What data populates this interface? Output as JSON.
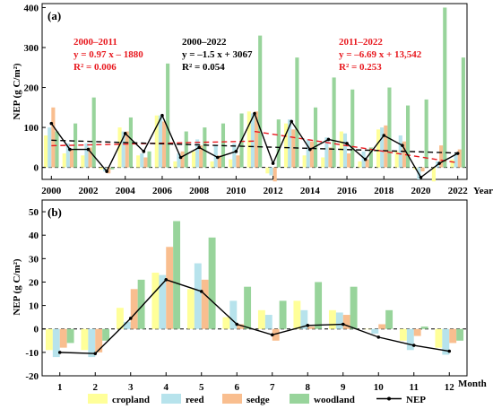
{
  "colors": {
    "cropland": "#ffff99",
    "reed": "#b7e3ec",
    "sedge": "#f9be8f",
    "woodland": "#98d49b",
    "nep": "#000000",
    "trend_red": "#e8191f",
    "trend_black": "#000000"
  },
  "legend": [
    {
      "key": "cropland",
      "label": "cropland",
      "kind": "bar"
    },
    {
      "key": "reed",
      "label": "reed",
      "kind": "bar"
    },
    {
      "key": "sedge",
      "label": "sedge",
      "kind": "bar"
    },
    {
      "key": "woodland",
      "label": "woodland",
      "kind": "bar"
    },
    {
      "key": "nep",
      "label": "NEP",
      "kind": "line"
    }
  ],
  "chart_data": [
    {
      "panel": "(a)",
      "type": "bar",
      "xlabel": "Year",
      "ylabel": "NEP (g C/m²)",
      "ylim": [
        -30,
        410
      ],
      "yticks": [
        0,
        100,
        200,
        300,
        400
      ],
      "xlim": [
        1999.5,
        2022.5
      ],
      "xticks": [
        2000,
        2002,
        2004,
        2006,
        2008,
        2010,
        2012,
        2014,
        2016,
        2018,
        2020,
        2022
      ],
      "xtick_labels": [
        "2000",
        "2002",
        "2004",
        "2006",
        "2008",
        "2010",
        "2012",
        "2014",
        "2016",
        "2018",
        "2020",
        "2022"
      ],
      "x": [
        2000,
        2001,
        2002,
        2003,
        2004,
        2005,
        2006,
        2007,
        2008,
        2009,
        2010,
        2011,
        2012,
        2013,
        2014,
        2015,
        2016,
        2017,
        2018,
        2019,
        2020,
        2021,
        2022
      ],
      "series": [
        {
          "key": "cropland",
          "name": "cropland",
          "values": [
            80,
            35,
            30,
            -5,
            100,
            30,
            130,
            15,
            40,
            15,
            20,
            140,
            -15,
            110,
            30,
            25,
            90,
            15,
            95,
            40,
            -5,
            -35,
            20
          ]
        },
        {
          "key": "reed",
          "name": "reed",
          "values": [
            100,
            60,
            60,
            -10,
            90,
            35,
            130,
            35,
            70,
            55,
            60,
            135,
            -20,
            120,
            70,
            75,
            85,
            40,
            100,
            80,
            -30,
            15,
            35
          ]
        },
        {
          "key": "sedge",
          "name": "sedge",
          "values": [
            150,
            45,
            50,
            -15,
            90,
            25,
            115,
            40,
            55,
            30,
            30,
            140,
            -35,
            95,
            65,
            50,
            35,
            20,
            105,
            65,
            -10,
            55,
            45
          ]
        },
        {
          "key": "woodland",
          "name": "woodland",
          "values": [
            90,
            110,
            175,
            -5,
            125,
            40,
            260,
            90,
            100,
            110,
            135,
            330,
            120,
            275,
            150,
            225,
            195,
            50,
            200,
            155,
            170,
            400,
            275
          ]
        },
        {
          "key": "nep",
          "name": "NEP",
          "type": "line",
          "values": [
            110,
            45,
            45,
            -10,
            85,
            40,
            130,
            25,
            50,
            25,
            40,
            135,
            10,
            115,
            45,
            70,
            60,
            20,
            80,
            55,
            -25,
            10,
            35
          ]
        }
      ],
      "trendlines": [
        {
          "label": "2000–2011",
          "range": [
            2000,
            2011
          ],
          "equation": "y = 0.97 x – 1880",
          "r2": "R² = 0.006",
          "color": "red",
          "style": "dashed"
        },
        {
          "label": "2000–2022",
          "range": [
            2000,
            2022
          ],
          "equation": "y = –1.5 x + 3067",
          "r2": "R² = 0.054",
          "color": "black",
          "style": "dashed"
        },
        {
          "label": "2011–2022",
          "range": [
            2011,
            2022
          ],
          "equation": "y = –6.69 x + 13,542",
          "r2": "R² = 0.253",
          "color": "red",
          "style": "dashed"
        }
      ]
    },
    {
      "panel": "(b)",
      "type": "bar",
      "xlabel": "Month",
      "ylabel": "NEP (g C/m²)",
      "ylim": [
        -20,
        55
      ],
      "yticks": [
        -20,
        -10,
        0,
        10,
        20,
        30,
        40,
        50
      ],
      "xlim": [
        0.5,
        12.5
      ],
      "xticks": [
        1,
        2,
        3,
        4,
        5,
        6,
        7,
        8,
        9,
        10,
        11,
        12
      ],
      "xtick_labels": [
        "1",
        "2",
        "3",
        "4",
        "5",
        "6",
        "7",
        "8",
        "9",
        "10",
        "11",
        "12"
      ],
      "x": [
        1,
        2,
        3,
        4,
        5,
        6,
        7,
        8,
        9,
        10,
        11,
        12
      ],
      "series": [
        {
          "key": "cropland",
          "name": "cropland",
          "values": [
            -9,
            -9,
            9,
            24,
            17,
            5,
            8,
            12,
            8,
            0,
            -5,
            -8
          ]
        },
        {
          "key": "reed",
          "name": "reed",
          "values": [
            -12,
            -12,
            3,
            23,
            28,
            12,
            6,
            8,
            7,
            -2,
            -9,
            -11
          ]
        },
        {
          "key": "sedge",
          "name": "sedge",
          "values": [
            -8,
            -10,
            17,
            35,
            21,
            2,
            -5,
            1,
            6,
            2,
            -3,
            -6
          ]
        },
        {
          "key": "woodland",
          "name": "woodland",
          "values": [
            -6,
            -5,
            21,
            46,
            39,
            18,
            12,
            20,
            18,
            8,
            1,
            -5
          ]
        },
        {
          "key": "nep",
          "name": "NEP",
          "type": "line",
          "values": [
            -10,
            -10.5,
            4.5,
            21,
            16,
            2,
            -2.5,
            1.5,
            2,
            -3.5,
            -7,
            -9.5
          ]
        }
      ]
    }
  ]
}
